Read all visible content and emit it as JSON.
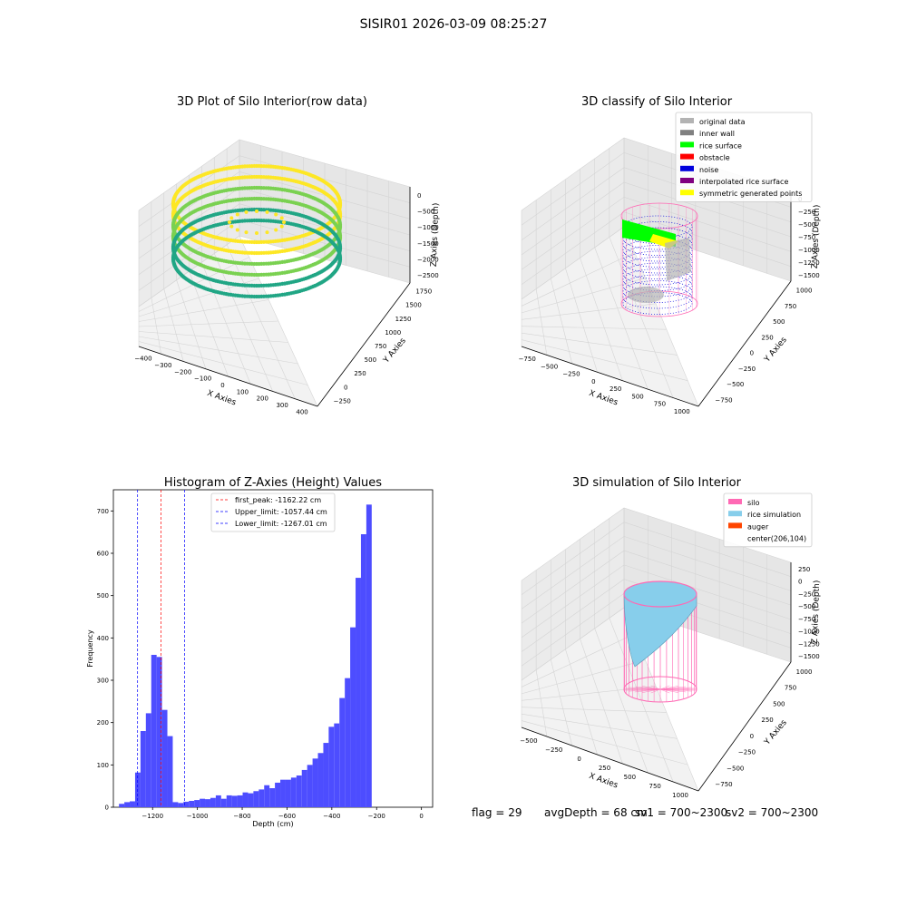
{
  "figure_title": "SISIR01 2026-03-09 08:25:27",
  "chart_data": [
    {
      "type": "scatter",
      "title": "3D Plot of Silo Interior(row data)",
      "xlabel": "X Axies",
      "ylabel": "Y Axies",
      "zlabel": "Z Axies (Depth)",
      "x_ticks": [
        "−400",
        "−300",
        "−200",
        "−100",
        "0",
        "100",
        "200",
        "300",
        "400"
      ],
      "y_ticks": [
        "−250",
        "0",
        "250",
        "500",
        "750",
        "1000",
        "1250",
        "1500",
        "1750"
      ],
      "z_ticks": [
        "0",
        "−500",
        "−1000",
        "−1500",
        "−2000",
        "−2500"
      ],
      "colors": {
        "low": "#21a685",
        "mid": "#7ad151",
        "high": "#fde725"
      }
    },
    {
      "type": "scatter",
      "title": "3D classify of Silo Interior",
      "xlabel": "X Axies",
      "ylabel": "Y Axies",
      "zlabel": "Z Axies (Depth)",
      "x_ticks": [
        "−750",
        "−500",
        "−250",
        "0",
        "250",
        "500",
        "750",
        "1000"
      ],
      "y_ticks": [
        "−750",
        "−500",
        "−250",
        "0",
        "250",
        "500",
        "750",
        "1000"
      ],
      "z_ticks": [
        "0",
        "−250",
        "−500",
        "−750",
        "−1000",
        "−1250",
        "−1500"
      ],
      "legend": [
        {
          "label": "original data",
          "color": "#b3b3b3"
        },
        {
          "label": "inner wall",
          "color": "#808080"
        },
        {
          "label": "rice surface",
          "color": "#00ff00"
        },
        {
          "label": "obstacle",
          "color": "#ff0000"
        },
        {
          "label": "noise",
          "color": "#0000dd"
        },
        {
          "label": "interpolated rice surface",
          "color": "#800080"
        },
        {
          "label": "symmetric generated points",
          "color": "#ffff00"
        }
      ],
      "legend_position": "top-right",
      "z_tick_partial": "0"
    },
    {
      "type": "bar",
      "title": "Histogram of Z-Axies (Height) Values",
      "xlabel": "Depth (cm)",
      "ylabel": "Frequency",
      "x_range": [
        -1375,
        50
      ],
      "ylim": [
        0,
        750
      ],
      "x_ticks": [
        -1200,
        -1000,
        -800,
        -600,
        -400,
        -200,
        0
      ],
      "x_tick_labels": [
        "−1200",
        "−1000",
        "−800",
        "−600",
        "−400",
        "−200",
        "0"
      ],
      "y_ticks": [
        0,
        100,
        200,
        300,
        400,
        500,
        600,
        700
      ],
      "bar_color": "#4d4dff",
      "bins_start": -1350,
      "bin_width": 24,
      "counts": [
        8,
        12,
        14,
        82,
        180,
        222,
        360,
        355,
        230,
        168,
        12,
        10,
        13,
        15,
        17,
        20,
        19,
        22,
        28,
        20,
        28,
        27,
        28,
        35,
        33,
        38,
        42,
        52,
        45,
        58,
        65,
        65,
        70,
        75,
        88,
        100,
        115,
        128,
        152,
        190,
        198,
        258,
        305,
        425,
        542,
        645,
        715
      ],
      "lines": [
        {
          "label": "first_peak: -1162.22 cm",
          "value": -1162.22,
          "color": "#ff0000"
        },
        {
          "label": "Upper_limit: -1057.44 cm",
          "value": -1057.44,
          "color": "#0000ff"
        },
        {
          "label": "Lower_limit: -1267.01 cm",
          "value": -1267.01,
          "color": "#0000ff"
        }
      ],
      "legend_position": "top-center"
    },
    {
      "type": "surface",
      "title": "3D simulation of Silo Interior",
      "xlabel": "X Axies",
      "ylabel": "Y Axies",
      "zlabel": "Z Axies (Depth)",
      "x_ticks": [
        "−500",
        "−250",
        "0",
        "250",
        "500",
        "750",
        "1000"
      ],
      "y_ticks": [
        "−750",
        "−500",
        "−250",
        "0",
        "250",
        "500",
        "750",
        "1000"
      ],
      "z_ticks": [
        "250",
        "0",
        "−250",
        "−500",
        "−750",
        "−1000",
        "−1250",
        "−1500"
      ],
      "legend": [
        {
          "label": "silo",
          "color": "#ff69b4"
        },
        {
          "label": "rice simulation",
          "color": "#87ceeb"
        },
        {
          "label": "auger",
          "color": "#ff4500"
        },
        {
          "label": "center(206,104)",
          "color": ""
        }
      ],
      "legend_position": "top-right"
    }
  ],
  "footer": {
    "flag": "flag = 29",
    "avg_depth": "avgDepth = 68 cm",
    "sv1": "sv1 = 700~2300",
    "sv2": "sv2 = 700~2300"
  }
}
